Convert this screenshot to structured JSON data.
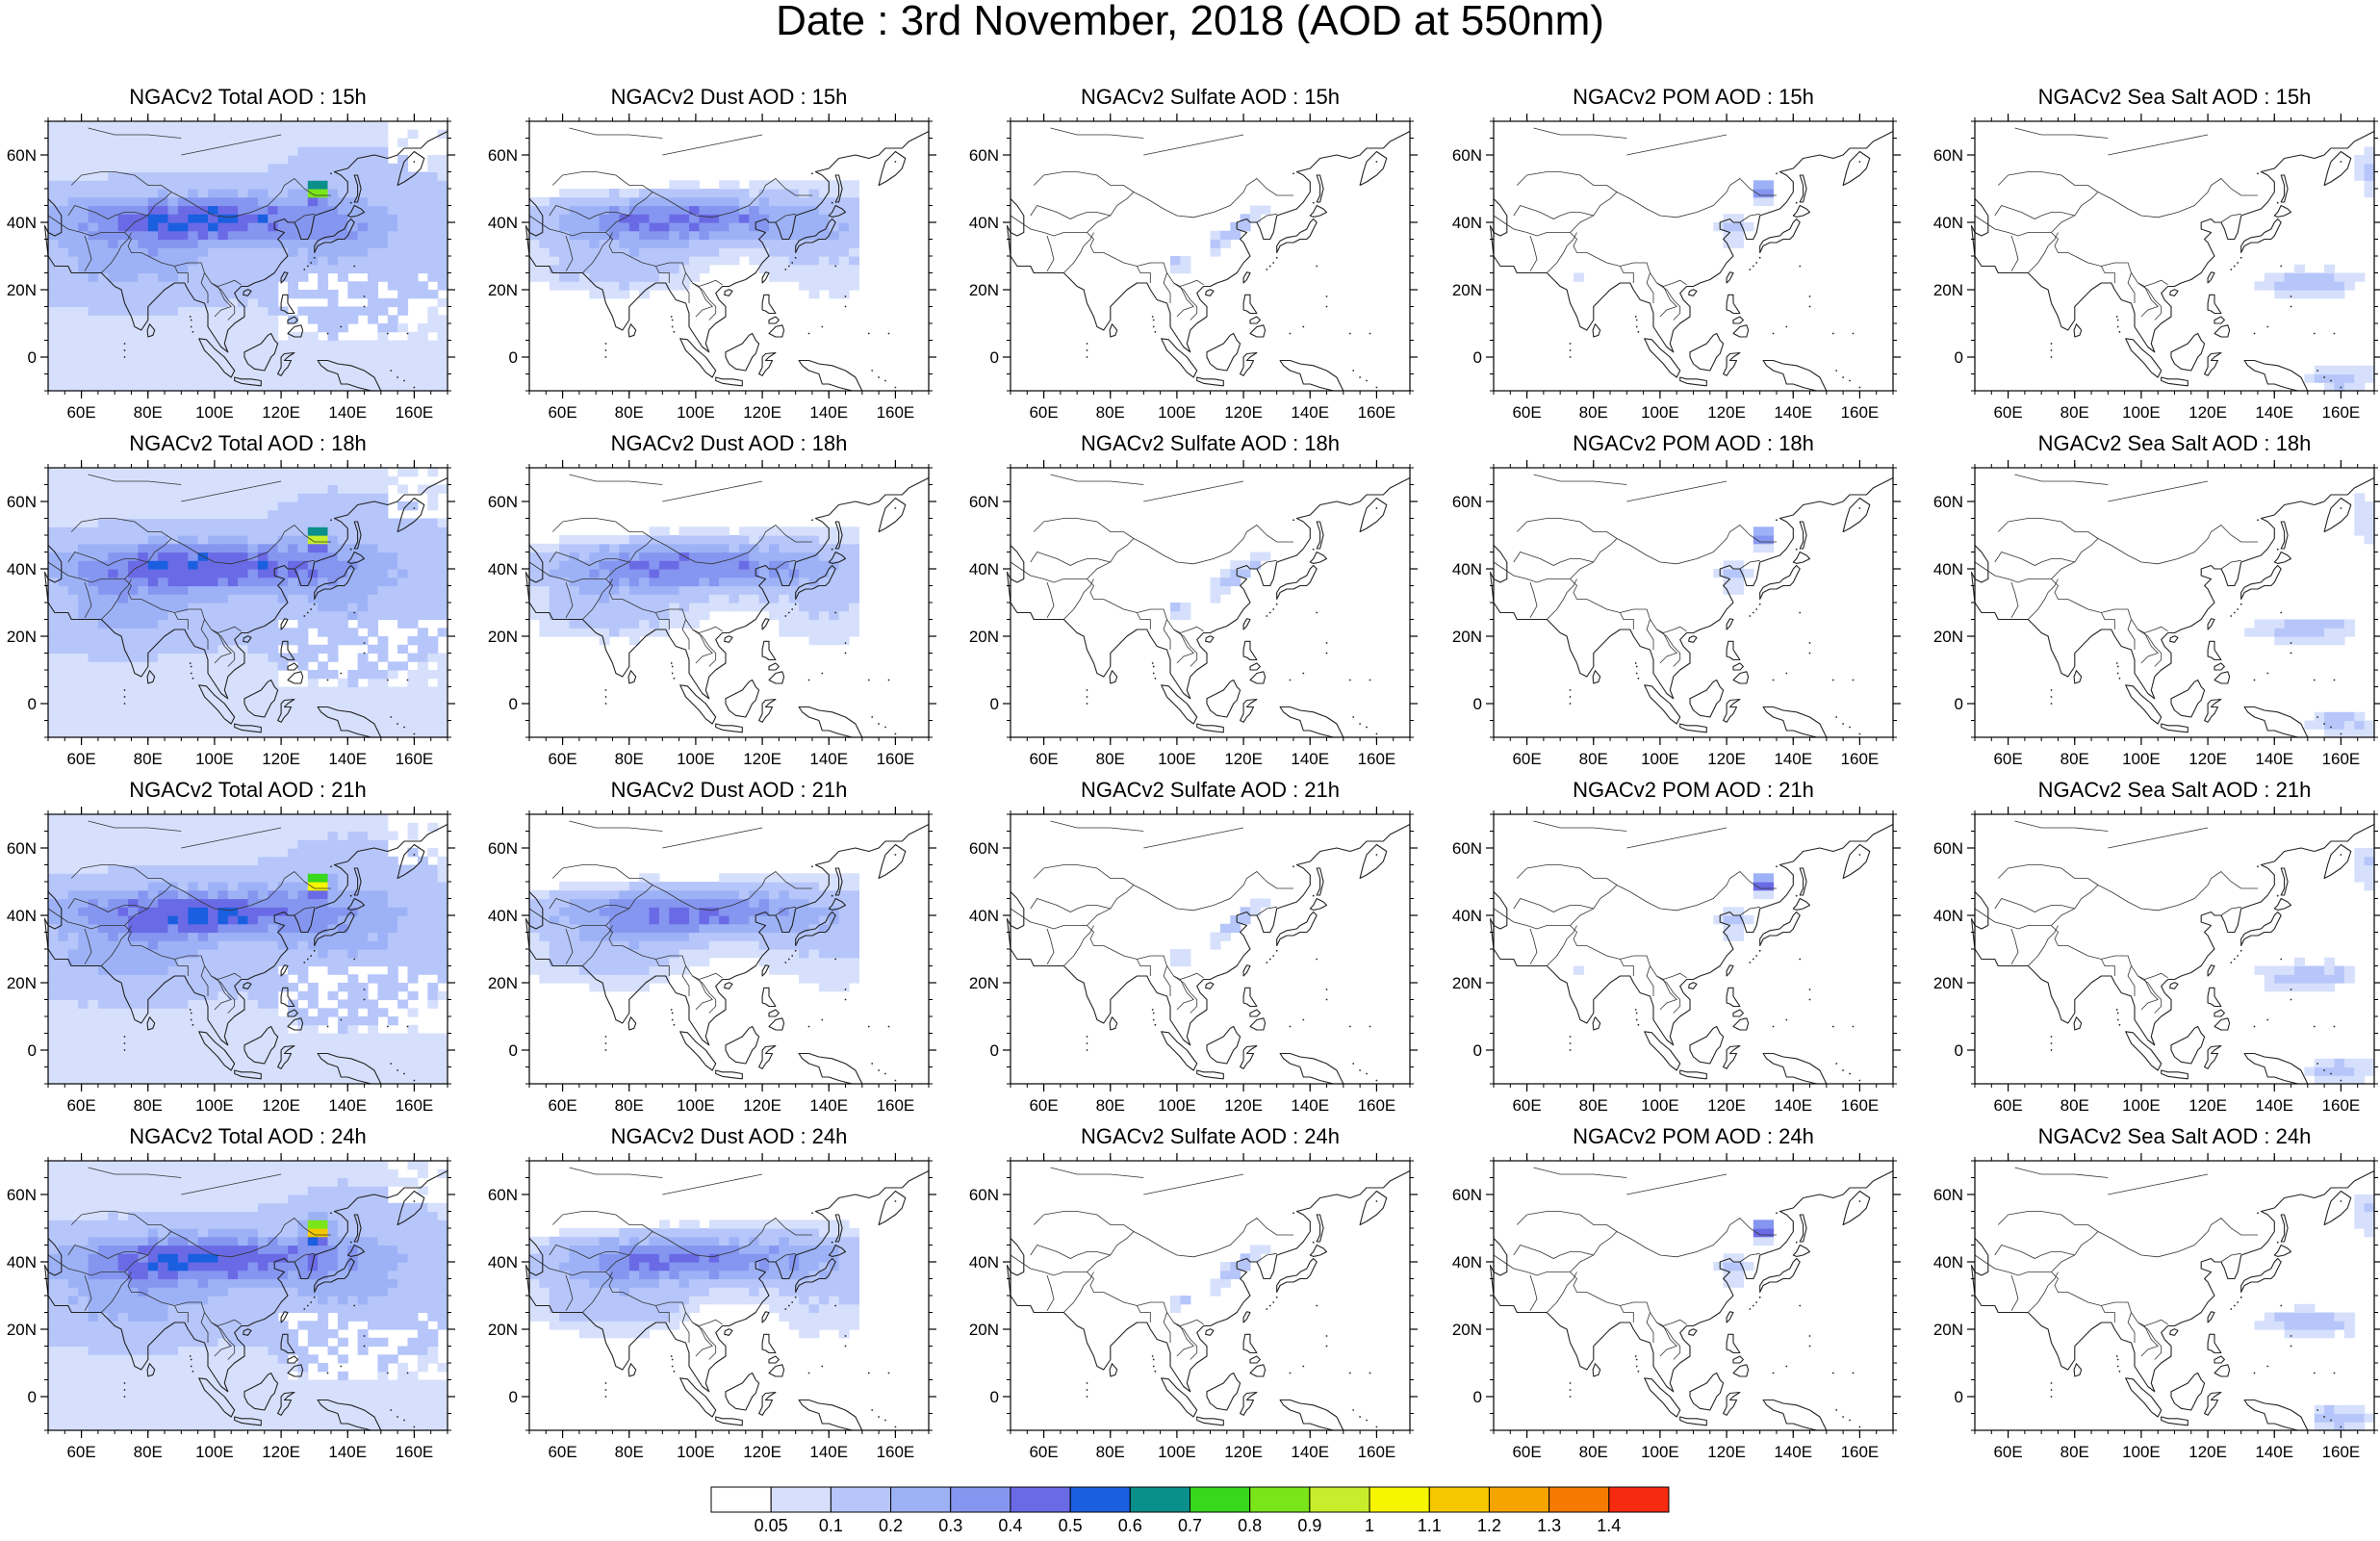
{
  "title": "Date : 3rd November, 2018 (AOD at 550nm)",
  "map_axes": {
    "lon_ticks": [
      "60E",
      "80E",
      "100E",
      "120E",
      "140E",
      "160E"
    ],
    "lon_values": [
      60,
      80,
      100,
      120,
      140,
      160
    ],
    "lat_ticks": [
      "60N",
      "40N",
      "20N",
      "0"
    ],
    "lat_values": [
      60,
      40,
      20,
      0
    ],
    "lon_range": [
      50,
      170
    ],
    "lat_range": [
      -10,
      70
    ]
  },
  "rows": [
    {
      "hour": "15h",
      "panels": [
        {
          "species": "total",
          "title": "NGACv2 Total AOD : 15h"
        },
        {
          "species": "dust",
          "title": "NGACv2 Dust AOD : 15h"
        },
        {
          "species": "sulfate",
          "title": "NGACv2 Sulfate AOD : 15h"
        },
        {
          "species": "pom",
          "title": "NGACv2 POM AOD : 15h"
        },
        {
          "species": "seasalt",
          "title": "NGACv2 Sea Salt AOD : 15h"
        }
      ]
    },
    {
      "hour": "18h",
      "panels": [
        {
          "species": "total",
          "title": "NGACv2 Total AOD : 18h"
        },
        {
          "species": "dust",
          "title": "NGACv2 Dust AOD : 18h"
        },
        {
          "species": "sulfate",
          "title": "NGACv2 Sulfate AOD : 18h"
        },
        {
          "species": "pom",
          "title": "NGACv2 POM AOD : 18h"
        },
        {
          "species": "seasalt",
          "title": "NGACv2 Sea Salt AOD : 18h"
        }
      ]
    },
    {
      "hour": "21h",
      "panels": [
        {
          "species": "total",
          "title": "NGACv2 Total AOD : 21h"
        },
        {
          "species": "dust",
          "title": "NGACv2 Dust AOD : 21h"
        },
        {
          "species": "sulfate",
          "title": "NGACv2 Sulfate AOD : 21h"
        },
        {
          "species": "pom",
          "title": "NGACv2 POM AOD : 21h"
        },
        {
          "species": "seasalt",
          "title": "NGACv2 Sea Salt AOD : 21h"
        }
      ]
    },
    {
      "hour": "24h",
      "panels": [
        {
          "species": "total",
          "title": "NGACv2 Total AOD : 24h"
        },
        {
          "species": "dust",
          "title": "NGACv2 Dust AOD : 24h"
        },
        {
          "species": "sulfate",
          "title": "NGACv2 Sulfate AOD : 24h"
        },
        {
          "species": "pom",
          "title": "NGACv2 POM AOD : 24h"
        },
        {
          "species": "seasalt",
          "title": "NGACv2 Sea Salt  AOD : 24h"
        }
      ]
    }
  ],
  "colorbar": {
    "labels": [
      "0.05",
      "0.1",
      "0.2",
      "0.3",
      "0.4",
      "0.5",
      "0.6",
      "0.7",
      "0.8",
      "0.9",
      "1",
      "1.1",
      "1.2",
      "1.3",
      "1.4"
    ],
    "colors": [
      "#ffffff",
      "#d6e0fc",
      "#b6c6fa",
      "#9db2f6",
      "#8596f0",
      "#6a6ae6",
      "#1a5fe0",
      "#0a8f8a",
      "#38d81c",
      "#7ae61a",
      "#c6ee2c",
      "#f6f600",
      "#f6c800",
      "#f6a400",
      "#f67a00",
      "#f62a10"
    ]
  }
}
